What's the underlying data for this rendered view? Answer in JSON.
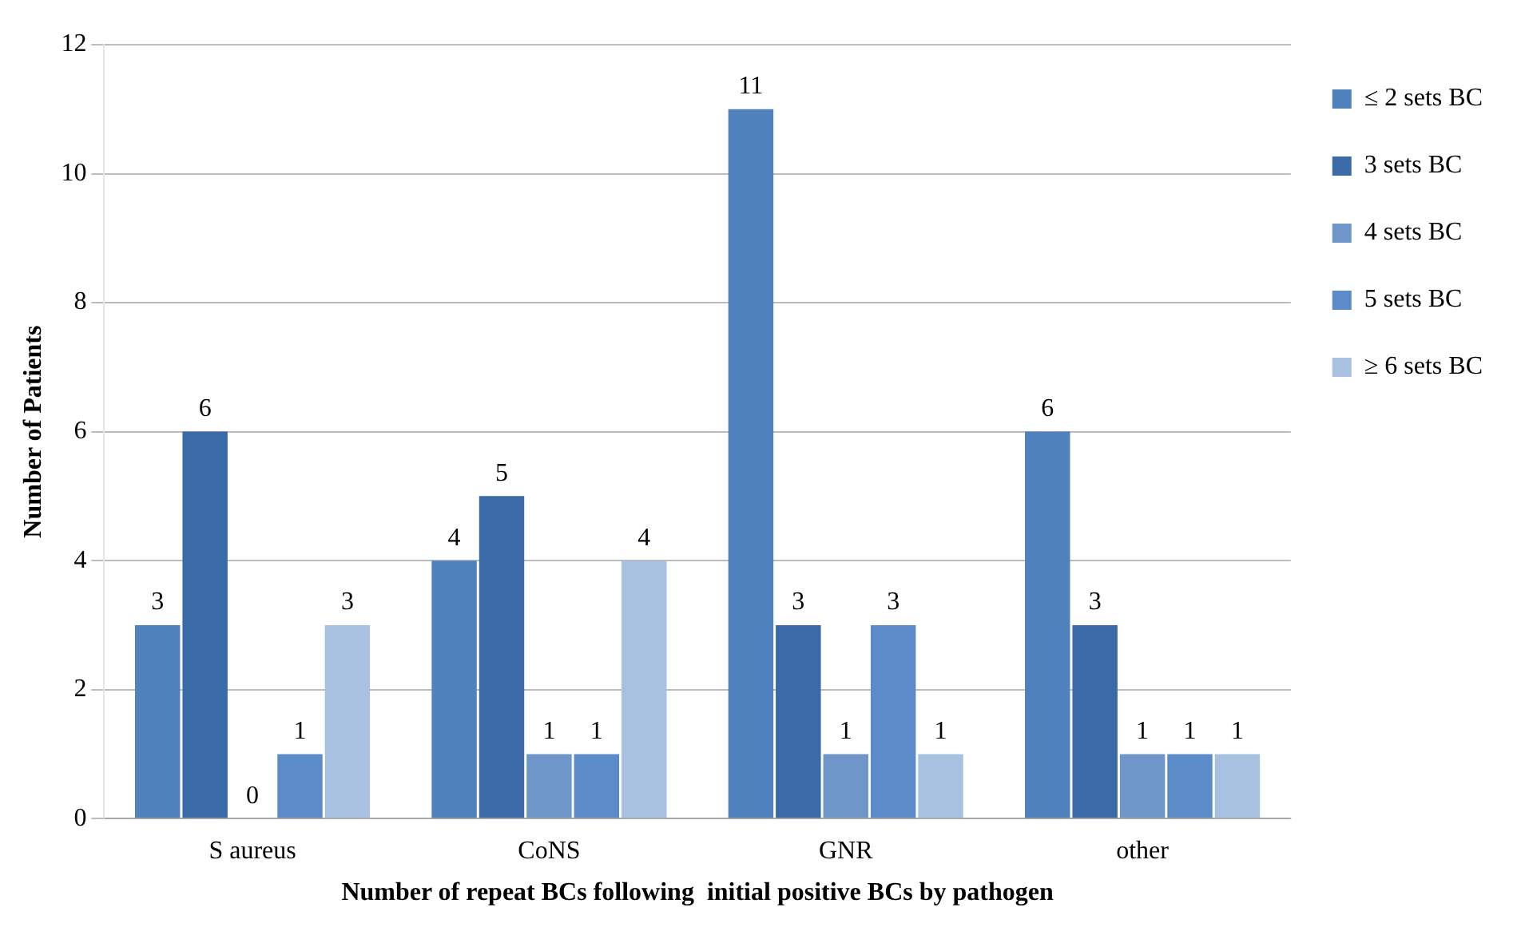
{
  "chart_data": {
    "type": "bar",
    "xlabel": "Number of repeat BCs following  initial positive BCs by pathogen",
    "ylabel": "Number of Patients",
    "categories": [
      "S aureus",
      "CoNS",
      "GNR",
      "other"
    ],
    "series": [
      {
        "name": "≤ 2 sets BC",
        "color": "#4f81bd",
        "values": [
          3,
          4,
          11,
          6
        ]
      },
      {
        "name": "3 sets BC",
        "color": "#3a6ba8",
        "values": [
          6,
          5,
          3,
          3
        ]
      },
      {
        "name": "4 sets BC",
        "color": "#6f96c8",
        "values": [
          0,
          1,
          1,
          1
        ]
      },
      {
        "name": "5 sets BC",
        "color": "#5b8cc9",
        "values": [
          1,
          1,
          3,
          1
        ]
      },
      {
        "name": "≥ 6 sets BC",
        "color": "#a9c1e0",
        "values": [
          3,
          4,
          1,
          1
        ]
      }
    ],
    "ylim": [
      0,
      12
    ],
    "yticks": [
      0,
      2,
      4,
      6,
      8,
      10,
      12
    ],
    "grid": "y",
    "legend": "top right",
    "data_labels": true
  }
}
